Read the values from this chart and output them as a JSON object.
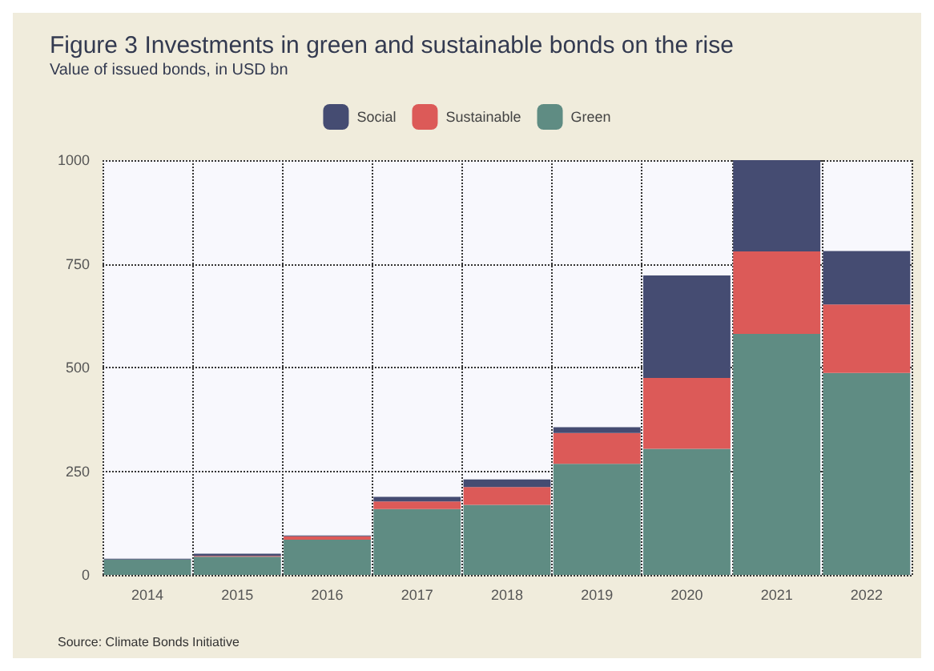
{
  "chart_data": {
    "type": "bar",
    "title": "Figure 3 Investments in green and sustainable bonds on the rise",
    "subtitle": "Value of issued bonds, in USD bn",
    "categories": [
      "2014",
      "2015",
      "2016",
      "2017",
      "2018",
      "2019",
      "2020",
      "2021",
      "2022"
    ],
    "stacked": true,
    "series": [
      {
        "name": "Green",
        "color": "#5f8c83",
        "values": [
          37,
          44,
          85,
          159,
          169,
          268,
          304,
          581,
          487
        ]
      },
      {
        "name": "Sustainable",
        "color": "#dc5a58",
        "values": [
          null,
          2,
          8,
          18,
          43,
          74,
          171,
          199,
          165
        ]
      },
      {
        "name": "Social",
        "color": "#454c72",
        "values": [
          2,
          5,
          2,
          11,
          18,
          14,
          247,
          220,
          129
        ]
      }
    ],
    "ylim": [
      0,
      1000
    ],
    "yticks": [
      0,
      250,
      500,
      750,
      1000
    ],
    "grid": true,
    "legend": "top",
    "annotations": [
      "Source: Climate Bonds Initiative"
    ]
  }
}
